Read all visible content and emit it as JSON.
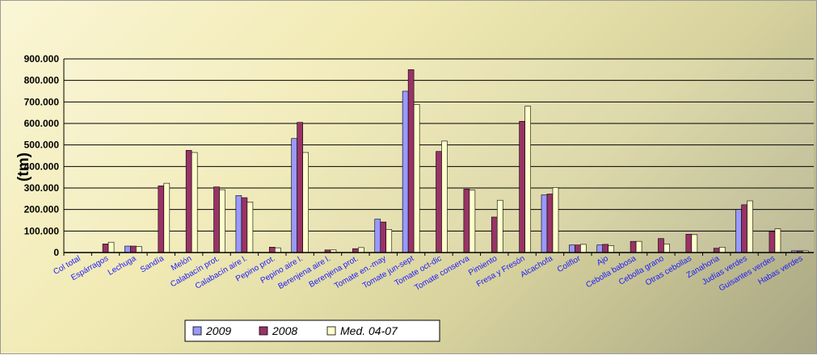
{
  "chart_data": {
    "type": "bar",
    "title": "",
    "ylabel": "(tm)",
    "xlabel": "",
    "ylim": [
      0,
      900000
    ],
    "yticks": [
      "0",
      "100.000",
      "200.000",
      "300.000",
      "400.000",
      "500.000",
      "600.000",
      "700.000",
      "800.000",
      "900.000"
    ],
    "grid": true,
    "legend_position": "bottom-left",
    "categories": [
      "Col total",
      "Espárragos",
      "Lechuga",
      "Sandía",
      "Melón",
      "Calabacín prot.",
      "Calabacín aire l.",
      "Pepino prot.",
      "Pepino aire l.",
      "Berenjena aire l.",
      "Berenjena prot.",
      "Tomate en.-may",
      "Tomate jun-sept",
      "Tomate oct-dic",
      "Tomate conserva",
      "Pimiento",
      "Fresa y Fresón",
      "Alcachofa",
      "Coliflor",
      "Ajo",
      "Cebolla babosa",
      "Cebolla grano",
      "Otras cebollas",
      "Zanahoria",
      "Judías verdes",
      "Guisantes verdes",
      "Habas verdes"
    ],
    "series": [
      {
        "name": "2009",
        "color": "#9999ff",
        "values": [
          null,
          null,
          30000,
          null,
          null,
          null,
          265000,
          null,
          530000,
          null,
          null,
          155000,
          750000,
          null,
          null,
          null,
          null,
          268000,
          35000,
          35000,
          null,
          null,
          null,
          null,
          200000,
          null,
          8000
        ]
      },
      {
        "name": "2008",
        "color": "#993366",
        "values": [
          null,
          40000,
          30000,
          310000,
          475000,
          305000,
          255000,
          25000,
          605000,
          12000,
          18000,
          142000,
          850000,
          470000,
          295000,
          165000,
          610000,
          272000,
          35000,
          38000,
          52000,
          65000,
          85000,
          20000,
          222000,
          98000,
          8000
        ]
      },
      {
        "name": "Med. 04-07",
        "color": "#ffffcc",
        "values": [
          null,
          48000,
          28000,
          322000,
          465000,
          292000,
          235000,
          22000,
          465000,
          12000,
          23000,
          107000,
          688000,
          518000,
          290000,
          243000,
          680000,
          302000,
          38000,
          32000,
          52000,
          40000,
          83000,
          25000,
          240000,
          110000,
          8000
        ]
      }
    ]
  }
}
